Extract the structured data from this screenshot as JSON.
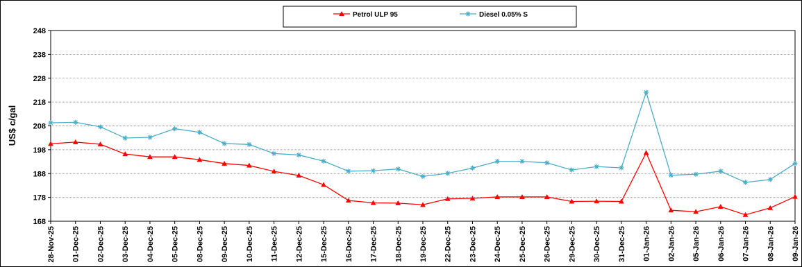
{
  "chart_data": {
    "type": "line",
    "ylabel": "US$ c/gal",
    "ylim": [
      168,
      248
    ],
    "yticks": [
      168,
      178,
      188,
      198,
      208,
      218,
      228,
      238,
      248
    ],
    "grid": "horizontal",
    "legend_position": "top-center",
    "categories": [
      "28-Nov-25",
      "01-Dec-25",
      "02-Dec-25",
      "03-Dec-25",
      "04-Dec-25",
      "05-Dec-25",
      "08-Dec-25",
      "09-Dec-25",
      "10-Dec-25",
      "11-Dec-25",
      "12-Dec-25",
      "15-Dec-25",
      "16-Dec-25",
      "17-Dec-25",
      "18-Dec-25",
      "19-Dec-25",
      "22-Dec-25",
      "23-Dec-25",
      "24-Dec-25",
      "25-Dec-25",
      "26-Dec-25",
      "29-Dec-25",
      "30-Dec-25",
      "31-Dec-25",
      "01-Jan-26",
      "02-Jan-26",
      "05-Jan-26",
      "06-Jan-26",
      "07-Jan-26",
      "08-Jan-26",
      "09-Jan-26"
    ],
    "series": [
      {
        "name": "Petrol ULP 95",
        "color": "#ff0000",
        "marker": "triangle",
        "values": [
          200.5,
          201.2,
          200.3,
          196.2,
          195.0,
          195.0,
          193.8,
          192.2,
          191.4,
          188.9,
          187.2,
          183.3,
          176.7,
          175.7,
          175.6,
          174.9,
          177.4,
          177.6,
          178.2,
          178.2,
          178.2,
          176.3,
          176.4,
          176.3,
          196.7,
          172.6,
          172.0,
          174.1,
          170.7,
          173.6,
          178.3
        ]
      },
      {
        "name": "Diesel 0.05% S",
        "color": "#4bacc6",
        "marker": "asterisk",
        "values": [
          209.3,
          209.5,
          207.6,
          202.9,
          203.2,
          206.8,
          205.3,
          200.6,
          200.2,
          196.4,
          195.8,
          193.2,
          189.0,
          189.2,
          189.9,
          186.8,
          188.1,
          190.3,
          193.1,
          193.1,
          192.5,
          189.5,
          190.9,
          190.4,
          222.1,
          187.3,
          187.7,
          189.0,
          184.3,
          185.5,
          192.2
        ]
      }
    ]
  }
}
